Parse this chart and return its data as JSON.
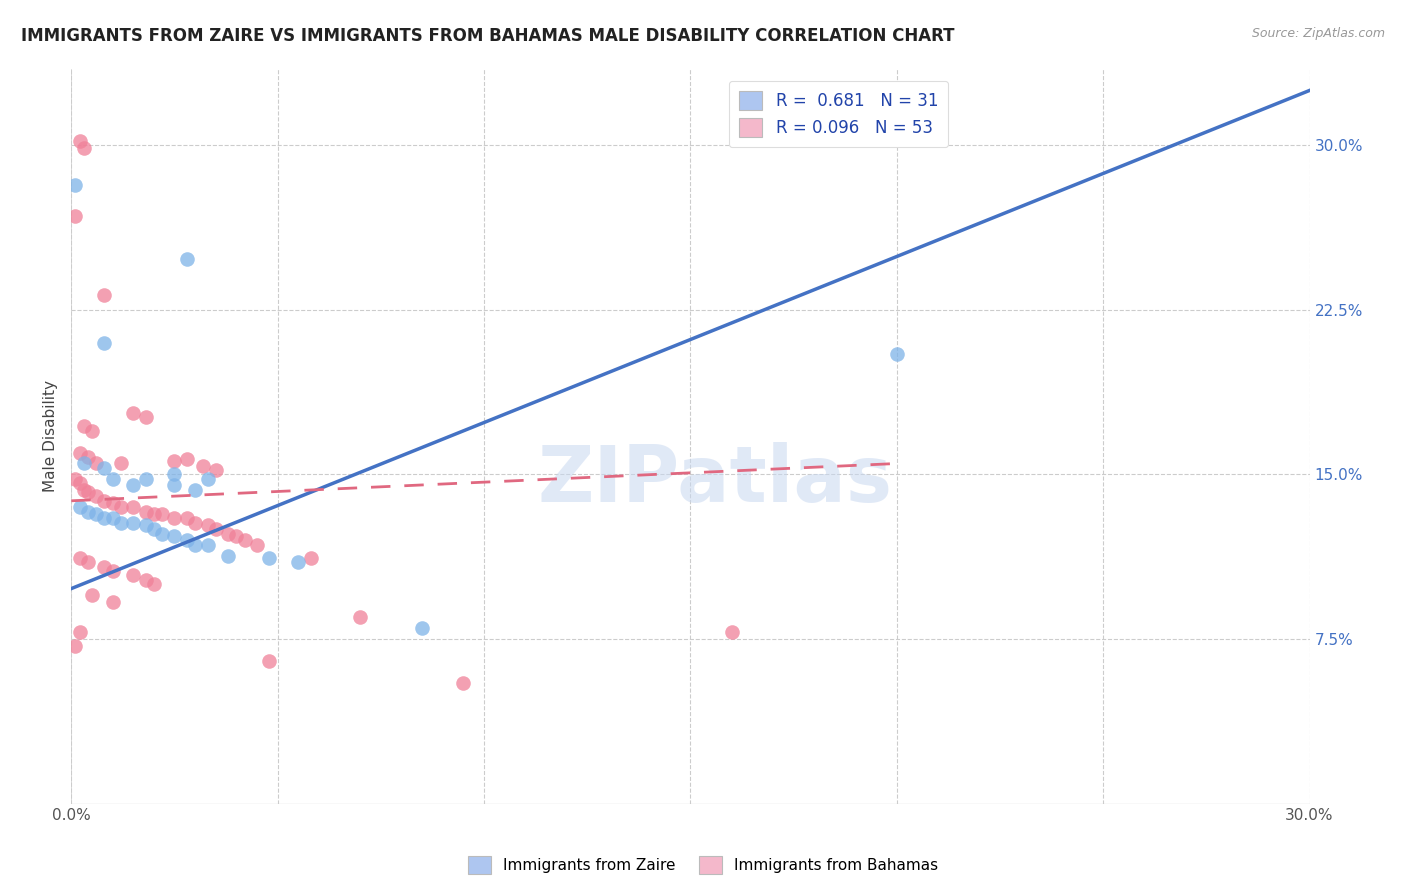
{
  "title": "IMMIGRANTS FROM ZAIRE VS IMMIGRANTS FROM BAHAMAS MALE DISABILITY CORRELATION CHART",
  "source": "Source: ZipAtlas.com",
  "ylabel": "Male Disability",
  "x_min": 0.0,
  "x_max": 0.3,
  "y_min": 0.0,
  "y_max": 0.335,
  "x_tick_positions": [
    0.0,
    0.05,
    0.1,
    0.15,
    0.2,
    0.25,
    0.3
  ],
  "x_tick_labels": [
    "0.0%",
    "",
    "",
    "",
    "",
    "",
    "30.0%"
  ],
  "y_tick_labels_right": [
    "7.5%",
    "15.0%",
    "22.5%",
    "30.0%"
  ],
  "y_tick_vals_right": [
    0.075,
    0.15,
    0.225,
    0.3
  ],
  "legend_color1": "#aec6f0",
  "legend_color2": "#f4b8cb",
  "color_zaire": "#7eb3e8",
  "color_bahamas": "#f08098",
  "trend_color_zaire": "#4472c4",
  "trend_color_bahamas": "#e06880",
  "zaire_trend_x": [
    0.0,
    0.3
  ],
  "zaire_trend_y": [
    0.098,
    0.325
  ],
  "bahamas_trend_x": [
    0.0,
    0.2
  ],
  "bahamas_trend_y": [
    0.138,
    0.155
  ],
  "zaire_points": [
    [
      0.001,
      0.282
    ],
    [
      0.028,
      0.248
    ],
    [
      0.008,
      0.21
    ],
    [
      0.018,
      0.148
    ],
    [
      0.025,
      0.15
    ],
    [
      0.033,
      0.148
    ],
    [
      0.003,
      0.155
    ],
    [
      0.008,
      0.153
    ],
    [
      0.01,
      0.148
    ],
    [
      0.015,
      0.145
    ],
    [
      0.025,
      0.145
    ],
    [
      0.03,
      0.143
    ],
    [
      0.002,
      0.135
    ],
    [
      0.004,
      0.133
    ],
    [
      0.006,
      0.132
    ],
    [
      0.008,
      0.13
    ],
    [
      0.01,
      0.13
    ],
    [
      0.012,
      0.128
    ],
    [
      0.015,
      0.128
    ],
    [
      0.018,
      0.127
    ],
    [
      0.02,
      0.125
    ],
    [
      0.022,
      0.123
    ],
    [
      0.025,
      0.122
    ],
    [
      0.028,
      0.12
    ],
    [
      0.03,
      0.118
    ],
    [
      0.033,
      0.118
    ],
    [
      0.038,
      0.113
    ],
    [
      0.048,
      0.112
    ],
    [
      0.055,
      0.11
    ],
    [
      0.2,
      0.205
    ],
    [
      0.085,
      0.08
    ]
  ],
  "bahamas_points": [
    [
      0.002,
      0.302
    ],
    [
      0.003,
      0.299
    ],
    [
      0.001,
      0.268
    ],
    [
      0.008,
      0.232
    ],
    [
      0.015,
      0.178
    ],
    [
      0.018,
      0.176
    ],
    [
      0.003,
      0.172
    ],
    [
      0.005,
      0.17
    ],
    [
      0.002,
      0.16
    ],
    [
      0.004,
      0.158
    ],
    [
      0.006,
      0.155
    ],
    [
      0.012,
      0.155
    ],
    [
      0.025,
      0.156
    ],
    [
      0.028,
      0.157
    ],
    [
      0.032,
      0.154
    ],
    [
      0.035,
      0.152
    ],
    [
      0.001,
      0.148
    ],
    [
      0.002,
      0.146
    ],
    [
      0.003,
      0.143
    ],
    [
      0.004,
      0.142
    ],
    [
      0.006,
      0.14
    ],
    [
      0.008,
      0.138
    ],
    [
      0.01,
      0.137
    ],
    [
      0.012,
      0.135
    ],
    [
      0.015,
      0.135
    ],
    [
      0.018,
      0.133
    ],
    [
      0.02,
      0.132
    ],
    [
      0.022,
      0.132
    ],
    [
      0.025,
      0.13
    ],
    [
      0.028,
      0.13
    ],
    [
      0.03,
      0.128
    ],
    [
      0.033,
      0.127
    ],
    [
      0.035,
      0.125
    ],
    [
      0.038,
      0.123
    ],
    [
      0.04,
      0.122
    ],
    [
      0.042,
      0.12
    ],
    [
      0.045,
      0.118
    ],
    [
      0.002,
      0.112
    ],
    [
      0.004,
      0.11
    ],
    [
      0.008,
      0.108
    ],
    [
      0.01,
      0.106
    ],
    [
      0.015,
      0.104
    ],
    [
      0.018,
      0.102
    ],
    [
      0.02,
      0.1
    ],
    [
      0.005,
      0.095
    ],
    [
      0.01,
      0.092
    ],
    [
      0.058,
      0.112
    ],
    [
      0.07,
      0.085
    ],
    [
      0.16,
      0.078
    ],
    [
      0.048,
      0.065
    ],
    [
      0.095,
      0.055
    ],
    [
      0.002,
      0.078
    ],
    [
      0.001,
      0.072
    ]
  ]
}
